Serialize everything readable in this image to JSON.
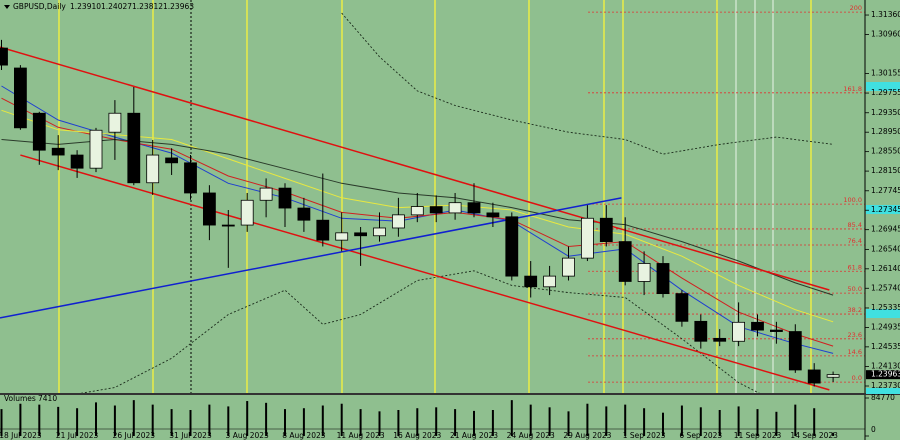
{
  "chart_data": {
    "type": "candlestick",
    "title": "GBPUSD,Daily",
    "ohlc_labels": [
      "1.23910",
      "1.24027",
      "1.23812",
      "1.23963"
    ],
    "categories": [
      null,
      "18 Jul 2023",
      null,
      null,
      "21 Jul 2023",
      null,
      null,
      "26 Jul 2023",
      null,
      null,
      "31 Jul 2023",
      null,
      null,
      "3 Aug 2023",
      null,
      null,
      "8 Aug 2023",
      null,
      null,
      "11 Aug 2023",
      null,
      null,
      "16 Aug 2023",
      null,
      null,
      "21 Aug 2023",
      null,
      null,
      "24 Aug 2023",
      null,
      null,
      "29 Aug 2023",
      null,
      null,
      "1 Sep 2023",
      null,
      null,
      "6 Sep 2023",
      null,
      null,
      "11 Sep 2023",
      null,
      null,
      "14 Sep 2023",
      null
    ],
    "open": [
      1.3068,
      1.3027,
      1.2934,
      1.2862,
      1.2848,
      1.2821,
      1.2895,
      1.2934,
      1.2791,
      1.2842,
      1.2832,
      1.277,
      1.2704,
      1.2704,
      1.2755,
      1.278,
      1.2739,
      1.2714,
      1.2673,
      1.2688,
      1.2682,
      1.2698,
      1.2725,
      1.2742,
      1.2729,
      1.275,
      1.2729,
      1.2721,
      1.2599,
      1.2577,
      1.2599,
      1.2636,
      1.2718,
      1.267,
      1.2588,
      1.2625,
      1.2563,
      1.2506,
      1.2471,
      1.2465,
      1.2504,
      1.2488,
      1.2485,
      1.2406,
      1.2391
    ],
    "high": [
      1.3085,
      1.3033,
      1.2937,
      1.2889,
      1.2858,
      1.2904,
      1.2961,
      1.2988,
      1.2879,
      1.2862,
      1.2848,
      1.2786,
      1.2735,
      1.277,
      1.28,
      1.279,
      1.276,
      1.281,
      1.273,
      1.27,
      1.273,
      1.276,
      1.277,
      1.2765,
      1.277,
      1.279,
      1.275,
      1.273,
      1.263,
      1.262,
      1.266,
      1.2745,
      1.2745,
      1.272,
      1.265,
      1.264,
      1.257,
      1.252,
      1.249,
      1.2545,
      1.252,
      1.2505,
      1.25,
      1.242,
      1.24027
    ],
    "low": [
      1.3023,
      1.29,
      1.2828,
      1.2817,
      1.2801,
      1.2813,
      1.2838,
      1.2786,
      1.2766,
      1.2807,
      1.2756,
      1.2673,
      1.2616,
      1.269,
      1.272,
      1.27,
      1.269,
      1.266,
      1.265,
      1.262,
      1.267,
      1.268,
      1.271,
      1.271,
      1.2715,
      1.272,
      1.27,
      1.259,
      1.2555,
      1.256,
      1.259,
      1.263,
      1.266,
      1.258,
      1.256,
      1.2555,
      1.2495,
      1.245,
      1.2455,
      1.2455,
      1.2475,
      1.246,
      1.24,
      1.2372,
      1.23812
    ],
    "close": [
      1.3033,
      1.2904,
      1.2858,
      1.2848,
      1.2821,
      1.2899,
      1.2934,
      1.2791,
      1.2848,
      1.2832,
      1.277,
      1.2704,
      1.2702,
      1.2755,
      1.278,
      1.2739,
      1.2714,
      1.2673,
      1.2688,
      1.2682,
      1.2698,
      1.2725,
      1.2742,
      1.2729,
      1.275,
      1.2729,
      1.2721,
      1.2599,
      1.2577,
      1.2599,
      1.2636,
      1.2718,
      1.267,
      1.2588,
      1.2625,
      1.2563,
      1.2506,
      1.2465,
      1.2465,
      1.2504,
      1.2488,
      1.2485,
      1.2406,
      1.2379,
      1.23963
    ],
    "ylim": [
      1.23586,
      1.31669
    ],
    "yticks": [
      {
        "value": 1.3136,
        "label": "1.31360"
      },
      {
        "value": 1.3096,
        "label": "1.30960"
      },
      {
        "value": 1.30155,
        "label": "1.30155"
      },
      {
        "value": 1.29755,
        "label": "1.29755"
      },
      {
        "value": 1.2935,
        "label": "1.29350"
      },
      {
        "value": 1.2895,
        "label": "1.28950"
      },
      {
        "value": 1.2855,
        "label": "1.28550"
      },
      {
        "value": 1.2815,
        "label": "1.28150"
      },
      {
        "value": 1.27745,
        "label": "1.27745"
      },
      {
        "value": 1.27345,
        "label": "1.27345"
      },
      {
        "value": 1.26945,
        "label": "1.26945"
      },
      {
        "value": 1.2654,
        "label": "1.26540"
      },
      {
        "value": 1.2614,
        "label": "1.26140"
      },
      {
        "value": 1.2574,
        "label": "1.25740"
      },
      {
        "value": 1.25335,
        "label": "1.25335"
      },
      {
        "value": 1.24935,
        "label": "1.24935"
      },
      {
        "value": 1.24535,
        "label": "1.24535"
      },
      {
        "value": 1.2413,
        "label": "1.24130"
      },
      {
        "value": 1.2373,
        "label": "1.23730"
      }
    ],
    "volume_title": "Volumes",
    "volumes": [
      60000,
      72000,
      70000,
      65000,
      62000,
      75000,
      68000,
      80000,
      70000,
      60000,
      58000,
      70000,
      66000,
      78000,
      74000,
      60000,
      62000,
      68000,
      72000,
      60000,
      55000,
      58000,
      62000,
      64000,
      60000,
      56000,
      58000,
      80000,
      70000,
      64000,
      55000,
      72000,
      66000,
      70000,
      62000,
      52000,
      68000,
      64000,
      58000,
      66000,
      60000,
      54000,
      70000,
      62000,
      7410
    ],
    "volume_ylim": [
      0,
      93700
    ],
    "volume_ticks": [
      84770,
      0
    ],
    "bull_color": "#e8f3e0",
    "bear_color": "#000000",
    "lines": [
      {
        "color": "#1f3fd0",
        "dash": false,
        "x": [
          0,
          3,
          6,
          9,
          12,
          15,
          18,
          21,
          24,
          27,
          30,
          33,
          36,
          39,
          42,
          44
        ],
        "values": [
          1.299,
          1.292,
          1.2885,
          1.2852,
          1.279,
          1.276,
          1.2718,
          1.2712,
          1.2735,
          1.2712,
          1.264,
          1.2655,
          1.257,
          1.2495,
          1.246,
          1.244
        ]
      },
      {
        "color": "#d02020",
        "dash": false,
        "x": [
          0,
          3,
          6,
          9,
          12,
          15,
          18,
          21,
          24,
          27,
          30,
          33,
          36,
          39,
          42,
          44
        ],
        "values": [
          1.2965,
          1.2905,
          1.288,
          1.286,
          1.2805,
          1.2772,
          1.273,
          1.2718,
          1.273,
          1.2715,
          1.266,
          1.267,
          1.2595,
          1.2525,
          1.248,
          1.2455
        ]
      },
      {
        "color": "#e8e840",
        "dash": false,
        "x": [
          0,
          3,
          6,
          9,
          12,
          15,
          18,
          21,
          24,
          27,
          30,
          33,
          36,
          39,
          42,
          44
        ],
        "values": [
          1.294,
          1.29,
          1.289,
          1.288,
          1.284,
          1.28,
          1.276,
          1.274,
          1.2745,
          1.2735,
          1.27,
          1.2685,
          1.264,
          1.258,
          1.253,
          1.2505
        ]
      },
      {
        "color": "#2a3a2a",
        "dash": false,
        "x": [
          0,
          3,
          6,
          9,
          12,
          15,
          18,
          21,
          24,
          27,
          30,
          33,
          36,
          39,
          42,
          44
        ],
        "values": [
          1.288,
          1.287,
          1.288,
          1.287,
          1.285,
          1.282,
          1.279,
          1.277,
          1.276,
          1.274,
          1.2715,
          1.2705,
          1.267,
          1.263,
          1.2585,
          1.256
        ]
      },
      {
        "color": "#1a2a1a",
        "dash": true,
        "x": [
          18,
          20,
          22,
          24,
          27,
          30,
          33,
          35,
          38,
          41,
          44
        ],
        "values": [
          1.314,
          1.305,
          1.298,
          1.295,
          1.292,
          1.2895,
          1.288,
          1.285,
          1.287,
          1.2885,
          1.287
        ]
      },
      {
        "color": "#1a2a1a",
        "dash": true,
        "x": [
          0,
          3,
          6,
          9,
          12,
          15,
          17,
          19,
          22,
          25,
          27,
          30,
          33,
          36,
          39,
          42
        ],
        "values": [
          1.234,
          1.235,
          1.237,
          1.243,
          1.252,
          1.257,
          1.25,
          1.252,
          1.259,
          1.261,
          1.258,
          1.2565,
          1.2555,
          1.247,
          1.238,
          1.232
        ]
      }
    ],
    "trendlines": [
      {
        "color": "#e01010",
        "x": [
          -0.08,
          43.8
        ],
        "values": [
          1.307,
          1.25704
        ]
      },
      {
        "color": "#e01010",
        "x": [
          1,
          43.8
        ],
        "values": [
          1.2848,
          1.2365
        ]
      },
      {
        "color": "#1020d0",
        "x": [
          -0.08,
          32.8
        ],
        "values": [
          1.2513,
          1.276
        ]
      }
    ],
    "fib": {
      "color": "#e03030",
      "levels": [
        {
          "value": 1.3142,
          "label": "200"
        },
        {
          "value": 1.2976,
          "label": "161.8"
        },
        {
          "value": 1.2747,
          "label": "100.0"
        },
        {
          "value": 1.2696,
          "label": "85.4"
        },
        {
          "value": 1.2663,
          "label": "76.4"
        },
        {
          "value": 1.2609,
          "label": "61.8"
        },
        {
          "value": 1.2564,
          "label": "50.0"
        },
        {
          "value": 1.2521,
          "label": "38.2"
        },
        {
          "value": 1.247,
          "label": "23.6"
        },
        {
          "value": 1.2435,
          "label": "14.6"
        },
        {
          "value": 1.2381,
          "label": "0.0"
        }
      ]
    }
  }
}
